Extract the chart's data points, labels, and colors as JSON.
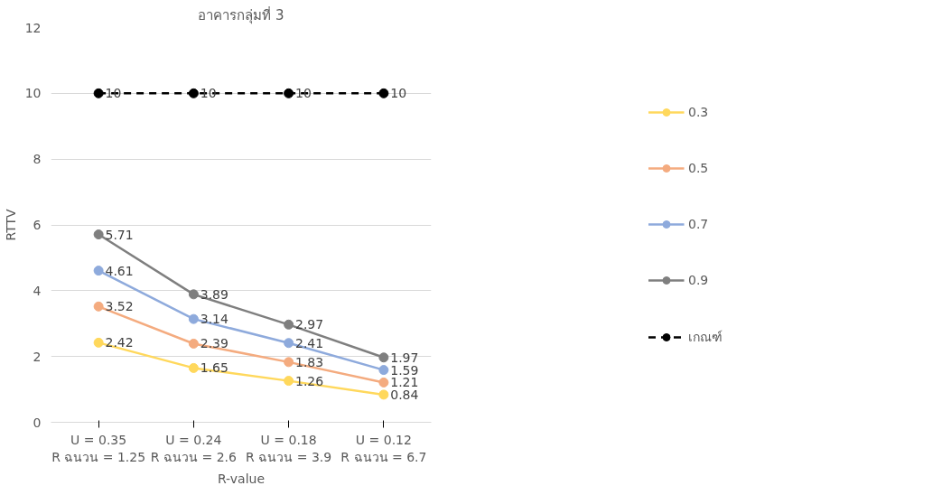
{
  "chart_data": {
    "type": "line",
    "title": "อาคารกลุ่มที่ 3",
    "xlabel": "R-value",
    "ylabel": "RTTV",
    "categories": [
      "U = 0.35\nR ฉนวน = 1.25",
      "U = 0.24\nR ฉนวน = 2.6",
      "U = 0.18\nR ฉนวน = 3.9",
      "U = 0.12\nR ฉนวน = 6.7"
    ],
    "series": [
      {
        "name": "0.3",
        "color": "#ffd85c",
        "values": [
          2.42,
          1.65,
          1.26,
          0.84
        ]
      },
      {
        "name": "0.5",
        "color": "#f4ab7f",
        "values": [
          3.52,
          2.39,
          1.83,
          1.21
        ]
      },
      {
        "name": "0.7",
        "color": "#8eaadc",
        "values": [
          4.61,
          3.14,
          2.41,
          1.59
        ]
      },
      {
        "name": "0.9",
        "color": "#7f7f7f",
        "values": [
          5.71,
          3.89,
          2.97,
          1.97
        ]
      },
      {
        "name": "เกณฑ์",
        "color": "#000000",
        "values": [
          10,
          10,
          10,
          10
        ],
        "line_style": "dashed"
      }
    ],
    "ylim": [
      0,
      12
    ],
    "yticks": [
      0,
      2,
      4,
      6,
      8,
      10,
      12
    ],
    "grid": "y",
    "legend": "right",
    "marker": "circle",
    "line_style": "solid",
    "data_labels": true
  }
}
